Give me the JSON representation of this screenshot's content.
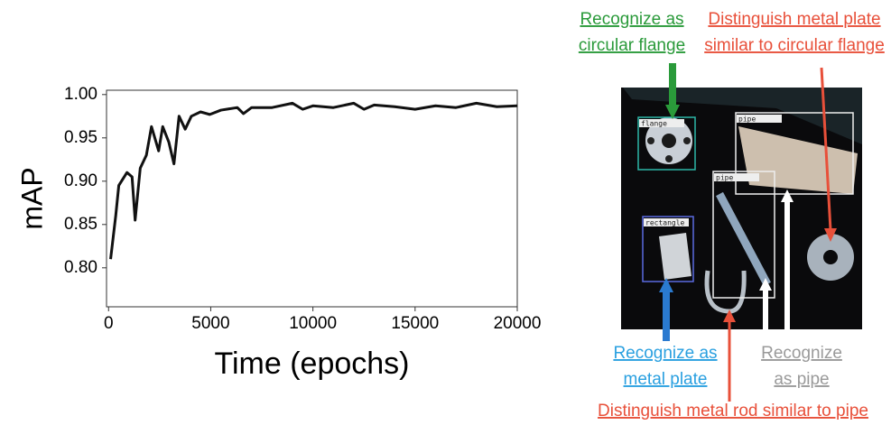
{
  "chart_data": {
    "type": "line",
    "x_label": "Time (epochs)",
    "y_label": "mAP",
    "x": [
      100,
      350,
      500,
      900,
      1150,
      1300,
      1550,
      1850,
      2100,
      2450,
      2650,
      2950,
      3200,
      3450,
      3750,
      4050,
      4500,
      4950,
      5500,
      6300,
      6600,
      7000,
      8000,
      9000,
      9500,
      10000,
      11000,
      12000,
      12500,
      13000,
      14000,
      15000,
      16000,
      17000,
      18000,
      19000,
      20000
    ],
    "values": [
      0.81,
      0.86,
      0.895,
      0.91,
      0.905,
      0.855,
      0.915,
      0.93,
      0.963,
      0.935,
      0.963,
      0.945,
      0.92,
      0.975,
      0.96,
      0.975,
      0.98,
      0.977,
      0.982,
      0.985,
      0.978,
      0.985,
      0.985,
      0.99,
      0.983,
      0.987,
      0.985,
      0.99,
      0.983,
      0.988,
      0.986,
      0.983,
      0.987,
      0.985,
      0.99,
      0.986,
      0.987
    ],
    "color": "#111111",
    "xlim": [
      -100,
      20000
    ],
    "ylim": [
      0.755,
      1.005
    ],
    "xticks": [
      0,
      5000,
      10000,
      15000,
      20000
    ],
    "yticks": [
      {
        "value": 1.0,
        "label": "1.00"
      },
      {
        "value": 0.95,
        "label": "0.95"
      },
      {
        "value": 0.9,
        "label": "0.90"
      },
      {
        "value": 0.85,
        "label": "0.85"
      },
      {
        "value": 0.8,
        "label": "0.80"
      }
    ],
    "grid": false
  },
  "detections": [
    "flange",
    "pipe",
    "pipe",
    "rectangle"
  ],
  "image_annotations": [
    {
      "lines": [
        "Recognize as",
        "circular flange"
      ],
      "color": "#2a9a3a"
    },
    {
      "lines": [
        "Distinguish metal plate",
        "similar to circular flange"
      ],
      "color": "#e8503a"
    },
    {
      "lines": [
        "Recognize as",
        "metal plate"
      ],
      "color": "#2aa0e0"
    },
    {
      "lines": [
        "Recognize",
        "as pipe"
      ],
      "color": "#9a9a9a"
    },
    {
      "lines": [
        "Distinguish metal rod similar to pipe"
      ],
      "color": "#e8503a"
    }
  ]
}
